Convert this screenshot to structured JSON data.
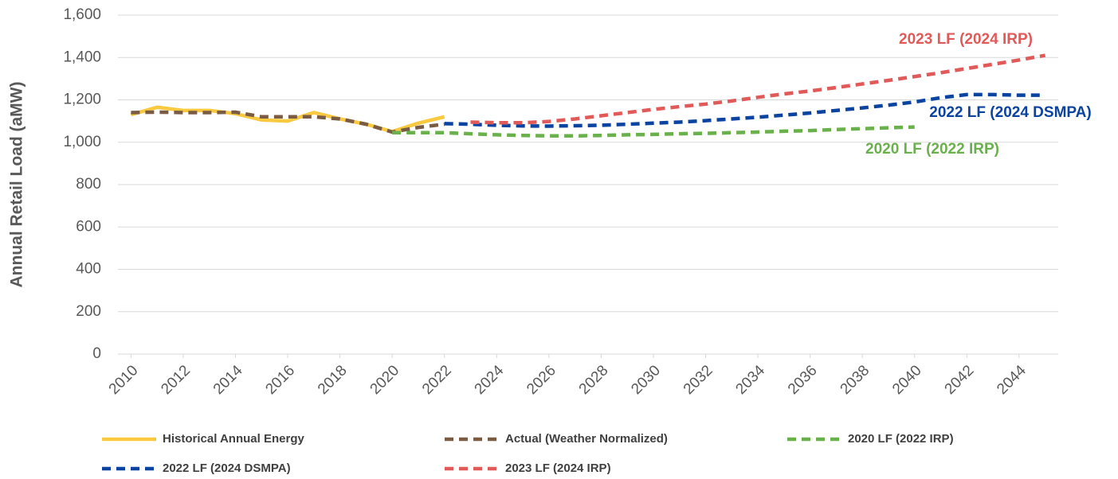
{
  "chart_data": {
    "type": "line",
    "y_label": "Annual Retail Load (aMW)",
    "x": [
      2010,
      2011,
      2012,
      2013,
      2014,
      2015,
      2016,
      2017,
      2018,
      2019,
      2020,
      2021,
      2022,
      2023,
      2024,
      2025,
      2026,
      2027,
      2028,
      2029,
      2030,
      2031,
      2032,
      2033,
      2034,
      2035,
      2036,
      2037,
      2038,
      2039,
      2040,
      2041,
      2042,
      2043,
      2044,
      2045
    ],
    "xlim": [
      2009.5,
      2045.5
    ],
    "xticks": [
      2010,
      2012,
      2014,
      2016,
      2018,
      2020,
      2022,
      2024,
      2026,
      2028,
      2030,
      2032,
      2034,
      2036,
      2038,
      2040,
      2042,
      2044
    ],
    "ylim": [
      0,
      1600
    ],
    "yticks": [
      0,
      200,
      400,
      600,
      800,
      {
        "value": 1000,
        "label": "1,000"
      },
      {
        "value": 1200,
        "label": "1,200"
      },
      {
        "value": 1400,
        "label": "1,400"
      },
      {
        "value": 1600,
        "label": "1,600"
      }
    ],
    "grid": true,
    "legend": "bottom",
    "series": [
      {
        "name": "Historical Annual Energy",
        "color": "#f9c940",
        "dashed": false,
        "values": [
          1130,
          1165,
          1150,
          1150,
          1135,
          1105,
          1100,
          1140,
          1110,
          1085,
          1050,
          1090,
          1120,
          null,
          null,
          null,
          null,
          null,
          null,
          null,
          null,
          null,
          null,
          null,
          null,
          null,
          null,
          null,
          null,
          null,
          null,
          null,
          null,
          null,
          null,
          null
        ]
      },
      {
        "name": "Actual (Weather Normalized)",
        "color": "#7a5c45",
        "dashed": true,
        "values": [
          1140,
          1142,
          1140,
          1140,
          1142,
          1120,
          1120,
          1120,
          1110,
          1085,
          1048,
          1070,
          1085,
          null,
          null,
          null,
          null,
          null,
          null,
          null,
          null,
          null,
          null,
          null,
          null,
          null,
          null,
          null,
          null,
          null,
          null,
          null,
          null,
          null,
          null,
          null
        ]
      },
      {
        "name": "2020 LF (2022 IRP)",
        "color": "#6ab04c",
        "dashed": true,
        "values": [
          null,
          null,
          null,
          null,
          null,
          null,
          null,
          null,
          null,
          null,
          1045,
          1045,
          1045,
          1040,
          1035,
          1032,
          1030,
          1030,
          1032,
          1035,
          1037,
          1040,
          1042,
          1045,
          1048,
          1052,
          1055,
          1060,
          1064,
          1068,
          1072,
          null,
          null,
          null,
          null,
          null
        ]
      },
      {
        "name": "2022 LF (2024 DSMPA)",
        "color": "#0b43a0",
        "dashed": true,
        "values": [
          null,
          null,
          null,
          null,
          null,
          null,
          null,
          null,
          null,
          null,
          null,
          null,
          1088,
          1085,
          1080,
          1077,
          1076,
          1078,
          1080,
          1085,
          1090,
          1095,
          1102,
          1110,
          1118,
          1128,
          1138,
          1150,
          1162,
          1175,
          1190,
          1210,
          1225,
          1225,
          1222,
          1222
        ]
      },
      {
        "name": "2023 LF (2024 IRP)",
        "color": "#e05a5a",
        "dashed": true,
        "values": [
          null,
          null,
          null,
          null,
          null,
          null,
          null,
          null,
          null,
          null,
          null,
          null,
          null,
          1095,
          1092,
          1092,
          1098,
          1110,
          1125,
          1140,
          1155,
          1168,
          1180,
          1195,
          1212,
          1228,
          1242,
          1258,
          1275,
          1292,
          1310,
          1328,
          1348,
          1368,
          1388,
          1410
        ]
      }
    ],
    "annotations": [
      {
        "text": "2023 LF (2024 IRP)",
        "color": "#e05a5a"
      },
      {
        "text": "2022 LF (2024 DSMPA)",
        "color": "#0b43a0"
      },
      {
        "text": "2020 LF (2022 IRP)",
        "color": "#6ab04c"
      }
    ]
  }
}
